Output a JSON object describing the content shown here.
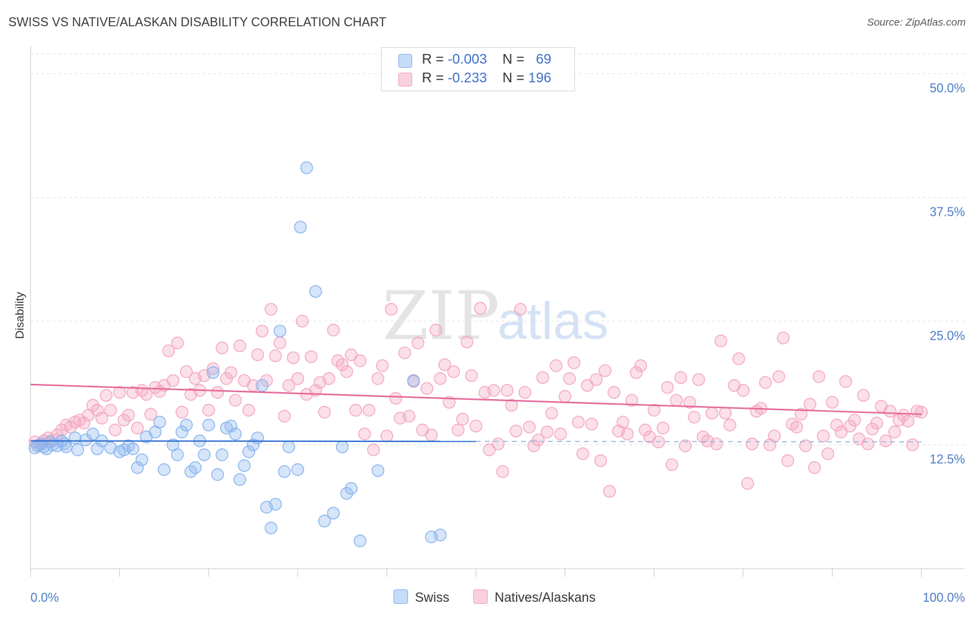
{
  "title": "SWISS VS NATIVE/ALASKAN DISABILITY CORRELATION CHART",
  "source": "Source: ZipAtlas.com",
  "watermark": {
    "zip": "ZIP",
    "atlas": "atlas"
  },
  "legend": {
    "rows": [
      {
        "r_label": "R = ",
        "r_value": "-0.003",
        "n_label": "N = ",
        "n_value": "69"
      },
      {
        "r_label": "R = ",
        "r_value": "-0.233",
        "n_label": "N = ",
        "n_value": "196"
      }
    ]
  },
  "chart_data": {
    "type": "scatter",
    "xlabel": "",
    "ylabel": "Disability",
    "x_unit": "%",
    "xlim": [
      0,
      100
    ],
    "ylim": [
      0,
      52
    ],
    "y_ticks": [
      {
        "value": 12.5,
        "label": "12.5%"
      },
      {
        "value": 25,
        "label": "25.0%"
      },
      {
        "value": 37.5,
        "label": "37.5%"
      },
      {
        "value": 50,
        "label": "50.0%"
      }
    ],
    "x_tick_labels": {
      "min": "0.0%",
      "max": "100.0%"
    },
    "grid": true,
    "legend_position": "top-center",
    "series": [
      {
        "name": "Swiss",
        "color": "#8ab4ee",
        "line_color": "#2f6fd0",
        "trend": {
          "x0": 0,
          "y0": 12.9,
          "x1": 50,
          "y1": 12.85,
          "dashed_to": 100
        },
        "points": [
          [
            0.5,
            12.2
          ],
          [
            0.8,
            12.4
          ],
          [
            1.2,
            12.6
          ],
          [
            1.5,
            12.3
          ],
          [
            1.8,
            12.1
          ],
          [
            2.2,
            12.8
          ],
          [
            2.5,
            12.5
          ],
          [
            3,
            12.4
          ],
          [
            3.5,
            12.9
          ],
          [
            3.8,
            12.6
          ],
          [
            4,
            12.3
          ],
          [
            5,
            13.2
          ],
          [
            5.3,
            12.0
          ],
          [
            6.2,
            13.0
          ],
          [
            7,
            13.6
          ],
          [
            7.5,
            12.1
          ],
          [
            8,
            12.9
          ],
          [
            9,
            12.2
          ],
          [
            10,
            11.8
          ],
          [
            10.5,
            12.0
          ],
          [
            11,
            12.4
          ],
          [
            11.5,
            12.1
          ],
          [
            12,
            10.2
          ],
          [
            12.5,
            11.0
          ],
          [
            13,
            13.3
          ],
          [
            14,
            13.8
          ],
          [
            14.5,
            14.8
          ],
          [
            15,
            10.0
          ],
          [
            16,
            12.5
          ],
          [
            16.5,
            11.5
          ],
          [
            17,
            13.8
          ],
          [
            17.5,
            14.5
          ],
          [
            18,
            9.8
          ],
          [
            18.5,
            10.2
          ],
          [
            19,
            12.9
          ],
          [
            19.5,
            11.5
          ],
          [
            20,
            14.5
          ],
          [
            20.5,
            19.8
          ],
          [
            21,
            9.5
          ],
          [
            21.5,
            11.5
          ],
          [
            22,
            14.2
          ],
          [
            22.5,
            14.4
          ],
          [
            23,
            13.6
          ],
          [
            23.5,
            9.0
          ],
          [
            24,
            10.4
          ],
          [
            24.5,
            11.8
          ],
          [
            25,
            12.5
          ],
          [
            25.5,
            13.2
          ],
          [
            26,
            18.5
          ],
          [
            26.5,
            6.2
          ],
          [
            27,
            4.1
          ],
          [
            27.5,
            6.5
          ],
          [
            28,
            24.0
          ],
          [
            28.5,
            9.8
          ],
          [
            29,
            12.3
          ],
          [
            30,
            10.0
          ],
          [
            30.3,
            34.5
          ],
          [
            31,
            40.5
          ],
          [
            32,
            28.0
          ],
          [
            33,
            4.8
          ],
          [
            34,
            5.6
          ],
          [
            35,
            12.3
          ],
          [
            35.5,
            7.6
          ],
          [
            36,
            8.1
          ],
          [
            37,
            2.8
          ],
          [
            39,
            9.9
          ],
          [
            43,
            19.0
          ],
          [
            45,
            3.2
          ],
          [
            46,
            3.4
          ]
        ]
      },
      {
        "name": "Natives/Alaskans",
        "color": "#f4a6c0",
        "line_color": "#e5679a",
        "trend": {
          "x0": 0,
          "y0": 18.6,
          "x1": 100,
          "y1": 15.6
        },
        "points": [
          [
            0.5,
            12.8
          ],
          [
            1,
            12.5
          ],
          [
            1.5,
            12.9
          ],
          [
            2,
            13.2
          ],
          [
            2.5,
            13.0
          ],
          [
            3,
            13.5
          ],
          [
            3.5,
            14.0
          ],
          [
            4,
            14.5
          ],
          [
            4.5,
            14.3
          ],
          [
            5,
            14.8
          ],
          [
            5.5,
            15.0
          ],
          [
            6,
            14.7
          ],
          [
            6.5,
            15.5
          ],
          [
            7,
            16.5
          ],
          [
            7.5,
            16.0
          ],
          [
            8,
            15.2
          ],
          [
            8.5,
            17.5
          ],
          [
            9,
            16.0
          ],
          [
            9.5,
            14.0
          ],
          [
            10,
            17.8
          ],
          [
            10.5,
            15.0
          ],
          [
            11,
            15.5
          ],
          [
            11.5,
            17.8
          ],
          [
            12,
            14.2
          ],
          [
            12.5,
            18.0
          ],
          [
            13,
            17.6
          ],
          [
            13.5,
            15.6
          ],
          [
            14,
            18.3
          ],
          [
            14.5,
            17.9
          ],
          [
            15,
            18.5
          ],
          [
            15.5,
            22.0
          ],
          [
            16,
            19.0
          ],
          [
            16.5,
            22.8
          ],
          [
            17,
            15.8
          ],
          [
            17.5,
            19.9
          ],
          [
            18,
            17.6
          ],
          [
            18.5,
            19.2
          ],
          [
            19,
            18.0
          ],
          [
            19.5,
            19.5
          ],
          [
            20,
            16.0
          ],
          [
            20.5,
            20.2
          ],
          [
            21,
            17.8
          ],
          [
            21.5,
            22.3
          ],
          [
            22,
            19.2
          ],
          [
            22.5,
            19.8
          ],
          [
            23,
            17.0
          ],
          [
            23.5,
            22.5
          ],
          [
            24,
            19.0
          ],
          [
            24.5,
            16.0
          ],
          [
            25,
            18.5
          ],
          [
            25.5,
            21.6
          ],
          [
            26,
            24.0
          ],
          [
            26.5,
            19.0
          ],
          [
            27,
            26.2
          ],
          [
            27.5,
            21.5
          ],
          [
            28,
            22.8
          ],
          [
            28.5,
            15.4
          ],
          [
            29,
            18.5
          ],
          [
            29.5,
            21.3
          ],
          [
            30,
            19.2
          ],
          [
            30.5,
            25.0
          ],
          [
            31,
            17.6
          ],
          [
            31.5,
            21.4
          ],
          [
            32,
            18.0
          ],
          [
            32.5,
            18.8
          ],
          [
            33,
            15.8
          ],
          [
            33.5,
            19.2
          ],
          [
            34,
            24.1
          ],
          [
            34.5,
            21.0
          ],
          [
            35,
            20.6
          ],
          [
            35.5,
            19.9
          ],
          [
            36,
            21.6
          ],
          [
            36.5,
            16.0
          ],
          [
            37,
            21.0
          ],
          [
            37.5,
            13.6
          ],
          [
            38,
            16.0
          ],
          [
            38.5,
            12.0
          ],
          [
            39,
            19.2
          ],
          [
            39.5,
            20.5
          ],
          [
            40,
            13.4
          ],
          [
            40.5,
            26.2
          ],
          [
            41,
            17.2
          ],
          [
            41.5,
            15.2
          ],
          [
            42,
            21.8
          ],
          [
            42.5,
            15.4
          ],
          [
            43,
            18.9
          ],
          [
            43.5,
            22.8
          ],
          [
            44,
            14.0
          ],
          [
            44.5,
            18.2
          ],
          [
            45,
            13.5
          ],
          [
            45.5,
            24.1
          ],
          [
            46,
            19.2
          ],
          [
            46.5,
            20.6
          ],
          [
            47,
            16.8
          ],
          [
            47.5,
            19.9
          ],
          [
            48,
            14.0
          ],
          [
            48.5,
            15.1
          ],
          [
            49,
            22.9
          ],
          [
            49.5,
            19.5
          ],
          [
            50,
            14.4
          ],
          [
            50.5,
            26.3
          ],
          [
            51,
            17.8
          ],
          [
            51.5,
            12.0
          ],
          [
            52,
            18.0
          ],
          [
            52.5,
            12.6
          ],
          [
            53,
            9.8
          ],
          [
            53.5,
            18.0
          ],
          [
            54,
            16.5
          ],
          [
            54.5,
            13.9
          ],
          [
            55,
            26.2
          ],
          [
            55.5,
            17.8
          ],
          [
            56,
            14.3
          ],
          [
            56.5,
            12.4
          ],
          [
            57,
            13.0
          ],
          [
            57.5,
            19.3
          ],
          [
            58,
            13.8
          ],
          [
            58.5,
            15.7
          ],
          [
            59,
            20.5
          ],
          [
            59.5,
            13.6
          ],
          [
            60,
            17.4
          ],
          [
            60.5,
            19.2
          ],
          [
            61,
            20.8
          ],
          [
            61.5,
            14.8
          ],
          [
            62,
            11.6
          ],
          [
            62.5,
            18.5
          ],
          [
            63,
            14.6
          ],
          [
            63.5,
            19.1
          ],
          [
            64,
            10.9
          ],
          [
            64.5,
            20.0
          ],
          [
            65,
            7.8
          ],
          [
            65.5,
            17.8
          ],
          [
            66,
            13.9
          ],
          [
            66.5,
            14.8
          ],
          [
            67,
            13.6
          ],
          [
            67.5,
            17.0
          ],
          [
            68,
            19.8
          ],
          [
            68.5,
            20.5
          ],
          [
            69,
            14.0
          ],
          [
            69.5,
            13.3
          ],
          [
            70,
            16.0
          ],
          [
            70.5,
            12.8
          ],
          [
            71,
            14.2
          ],
          [
            71.5,
            18.3
          ],
          [
            72,
            10.5
          ],
          [
            72.5,
            17.0
          ],
          [
            73,
            19.3
          ],
          [
            73.5,
            12.4
          ],
          [
            74,
            16.8
          ],
          [
            74.5,
            15.3
          ],
          [
            75,
            19.1
          ],
          [
            75.5,
            13.3
          ],
          [
            76,
            12.9
          ],
          [
            76.5,
            15.7
          ],
          [
            77,
            12.6
          ],
          [
            77.5,
            23.0
          ],
          [
            78,
            15.7
          ],
          [
            78.5,
            14.5
          ],
          [
            79,
            18.5
          ],
          [
            79.5,
            21.2
          ],
          [
            80,
            18.0
          ],
          [
            80.5,
            8.6
          ],
          [
            81,
            12.6
          ],
          [
            81.5,
            15.9
          ],
          [
            82,
            16.2
          ],
          [
            82.5,
            18.8
          ],
          [
            83,
            12.5
          ],
          [
            83.5,
            13.4
          ],
          [
            84,
            19.4
          ],
          [
            84.5,
            23.3
          ],
          [
            85,
            10.9
          ],
          [
            85.5,
            14.6
          ],
          [
            86,
            14.3
          ],
          [
            86.5,
            15.6
          ],
          [
            87,
            12.4
          ],
          [
            87.5,
            16.6
          ],
          [
            88,
            10.2
          ],
          [
            88.5,
            19.4
          ],
          [
            89,
            13.4
          ],
          [
            89.5,
            11.6
          ],
          [
            90,
            16.8
          ],
          [
            90.5,
            14.5
          ],
          [
            91,
            13.8
          ],
          [
            91.5,
            18.9
          ],
          [
            92,
            14.4
          ],
          [
            92.5,
            15.0
          ],
          [
            93,
            13.1
          ],
          [
            93.5,
            17.5
          ],
          [
            94,
            12.6
          ],
          [
            94.5,
            14.1
          ],
          [
            95,
            14.7
          ],
          [
            95.5,
            16.4
          ],
          [
            96,
            12.9
          ],
          [
            96.5,
            15.9
          ],
          [
            97,
            13.8
          ],
          [
            97.5,
            15.0
          ],
          [
            98,
            15.5
          ],
          [
            98.5,
            14.9
          ],
          [
            99,
            12.5
          ],
          [
            99.5,
            15.9
          ],
          [
            100,
            15.8
          ]
        ]
      }
    ]
  }
}
